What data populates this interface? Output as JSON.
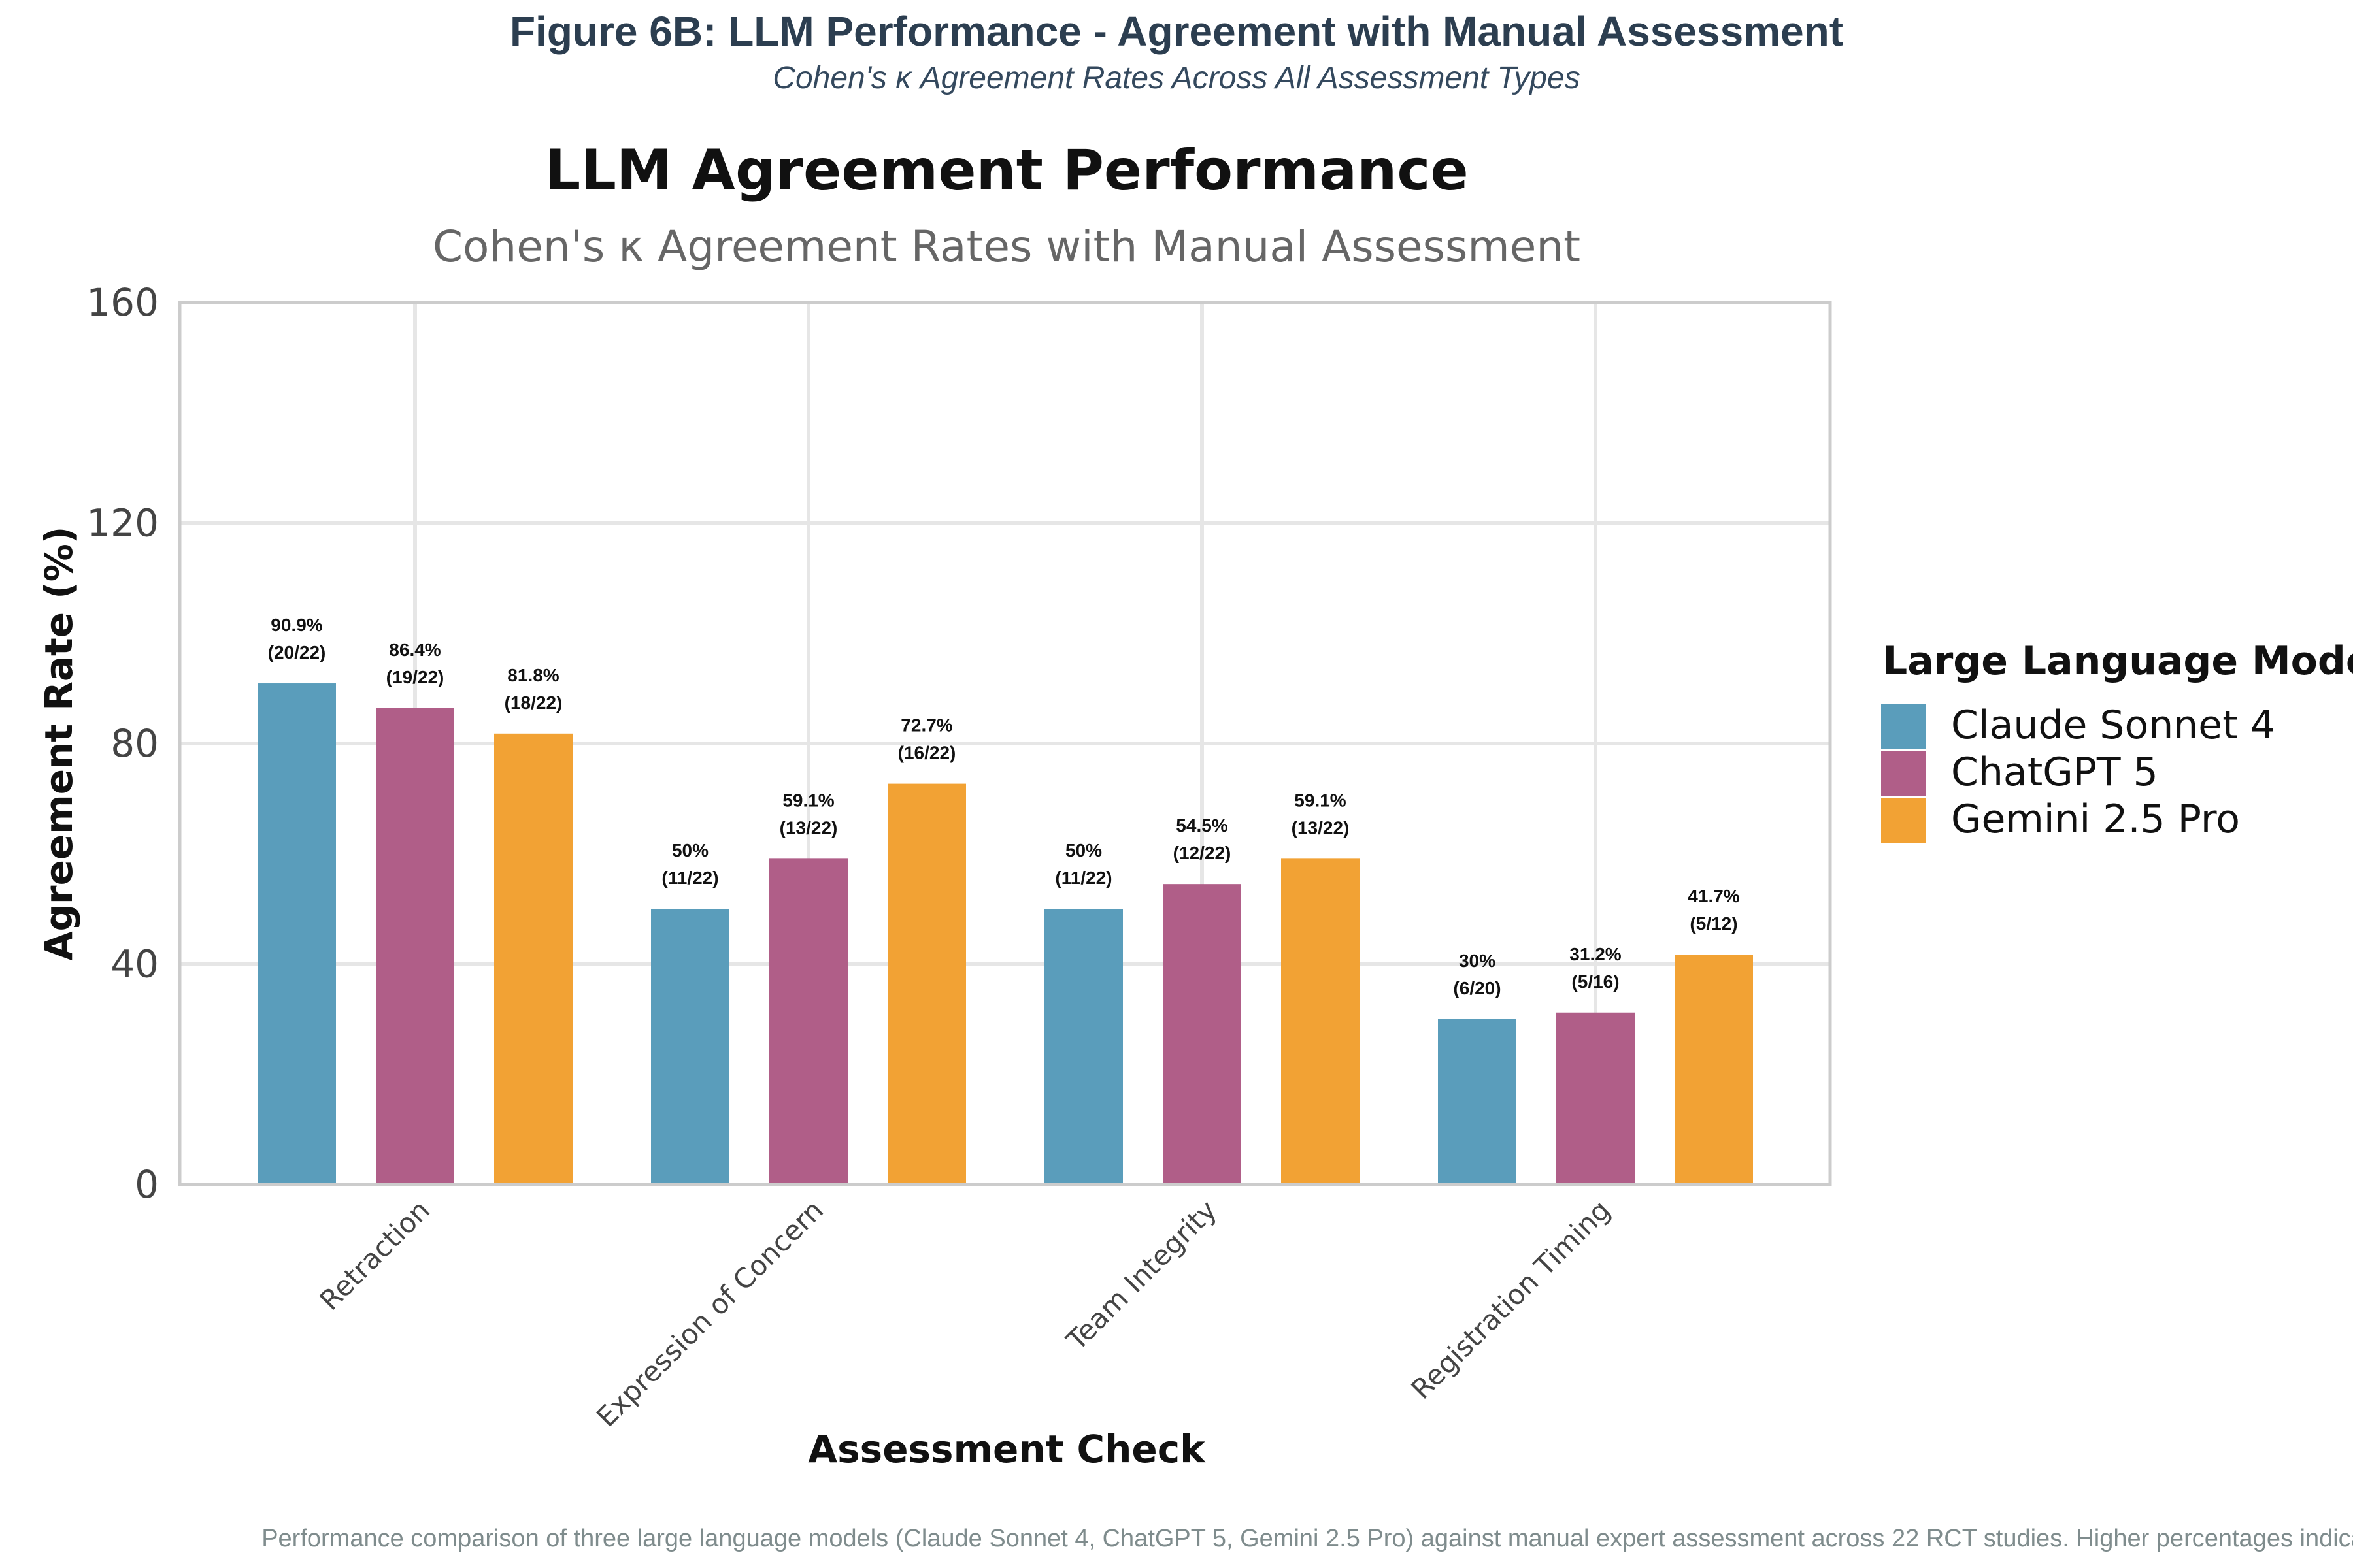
{
  "figure": {
    "title": "Figure 6B: LLM Performance - Agreement with Manual Assessment",
    "subtitle": "Cohen's κ Agreement Rates Across All Assessment Types",
    "caption": "Performance comparison of three large language models (Claude Sonnet 4, ChatGPT 5, Gemini 2.5 Pro) against manual expert assessment across 22 RCT studies. Higher percentages indicate better agreement."
  },
  "chart_data": {
    "type": "bar",
    "title": "LLM Agreement Performance",
    "subtitle": "Cohen's κ Agreement Rates with Manual Assessment",
    "xlabel": "Assessment Check",
    "ylabel": "Agreement Rate (%)",
    "ylim": [
      0,
      160
    ],
    "yticks": [
      0,
      40,
      80,
      120,
      160
    ],
    "grid": true,
    "legend_title": "Large Language Model",
    "legend_position": "right",
    "categories": [
      "Retraction",
      "Expression of Concern",
      "Team Integrity",
      "Registration Timing"
    ],
    "series": [
      {
        "name": "Claude Sonnet 4",
        "color": "#5a9dbb",
        "values": [
          90.9,
          50,
          50,
          30
        ],
        "labels": [
          "90.9%",
          "50%",
          "50%",
          "30%"
        ],
        "counts": [
          "(20/22)",
          "(11/22)",
          "(11/22)",
          "(6/20)"
        ]
      },
      {
        "name": "ChatGPT 5",
        "color": "#b05e88",
        "values": [
          86.4,
          59.1,
          54.5,
          31.2
        ],
        "labels": [
          "86.4%",
          "59.1%",
          "54.5%",
          "31.2%"
        ],
        "counts": [
          "(19/22)",
          "(13/22)",
          "(12/22)",
          "(5/16)"
        ]
      },
      {
        "name": "Gemini 2.5 Pro",
        "color": "#f2a234",
        "values": [
          81.8,
          72.7,
          59.1,
          41.7
        ],
        "labels": [
          "81.8%",
          "72.7%",
          "59.1%",
          "41.7%"
        ],
        "counts": [
          "(18/22)",
          "(16/22)",
          "(13/22)",
          "(5/12)"
        ]
      }
    ]
  }
}
